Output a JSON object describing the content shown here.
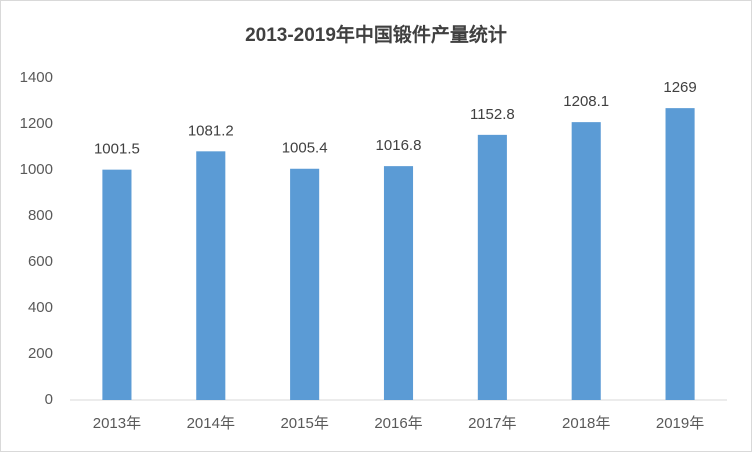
{
  "chart_data": {
    "type": "bar",
    "title": "2013-2019年中国锻件产量统计",
    "categories": [
      "2013年",
      "2014年",
      "2015年",
      "2016年",
      "2017年",
      "2018年",
      "2019年"
    ],
    "values": [
      1001.5,
      1081.2,
      1005.4,
      1016.8,
      1152.8,
      1208.1,
      1269
    ],
    "color": "#5b9bd5",
    "ylim": [
      0,
      1400
    ],
    "yticks": [
      0,
      200,
      400,
      600,
      800,
      1000,
      1200,
      1400
    ],
    "grid": false
  }
}
